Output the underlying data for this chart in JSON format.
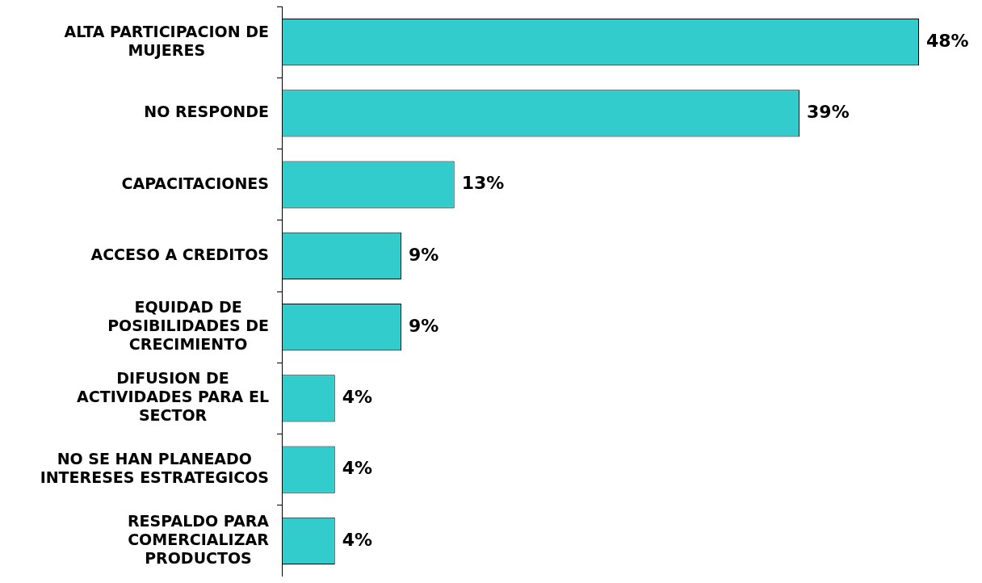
{
  "chart_data": {
    "type": "bar",
    "orientation": "horizontal",
    "categories": [
      "ALTA PARTICIPACION DE MUJERES",
      "NO RESPONDE",
      "CAPACITACIONES",
      "ACCESO A CREDITOS",
      "EQUIDAD DE POSIBILIDADES DE CRECIMIENTO",
      "DIFUSION DE ACTIVIDADES PARA EL SECTOR",
      "NO SE HAN PLANEADO INTERESES ESTRATEGICOS",
      "RESPALDO PARA COMERCIALIZAR PRODUCTOS"
    ],
    "values": [
      48,
      39,
      13,
      9,
      9,
      4,
      4,
      4
    ],
    "value_labels": [
      "48%",
      "39%",
      "13%",
      "9%",
      "9%",
      "4%",
      "4%",
      "4%"
    ],
    "color": "#33cccc"
  }
}
